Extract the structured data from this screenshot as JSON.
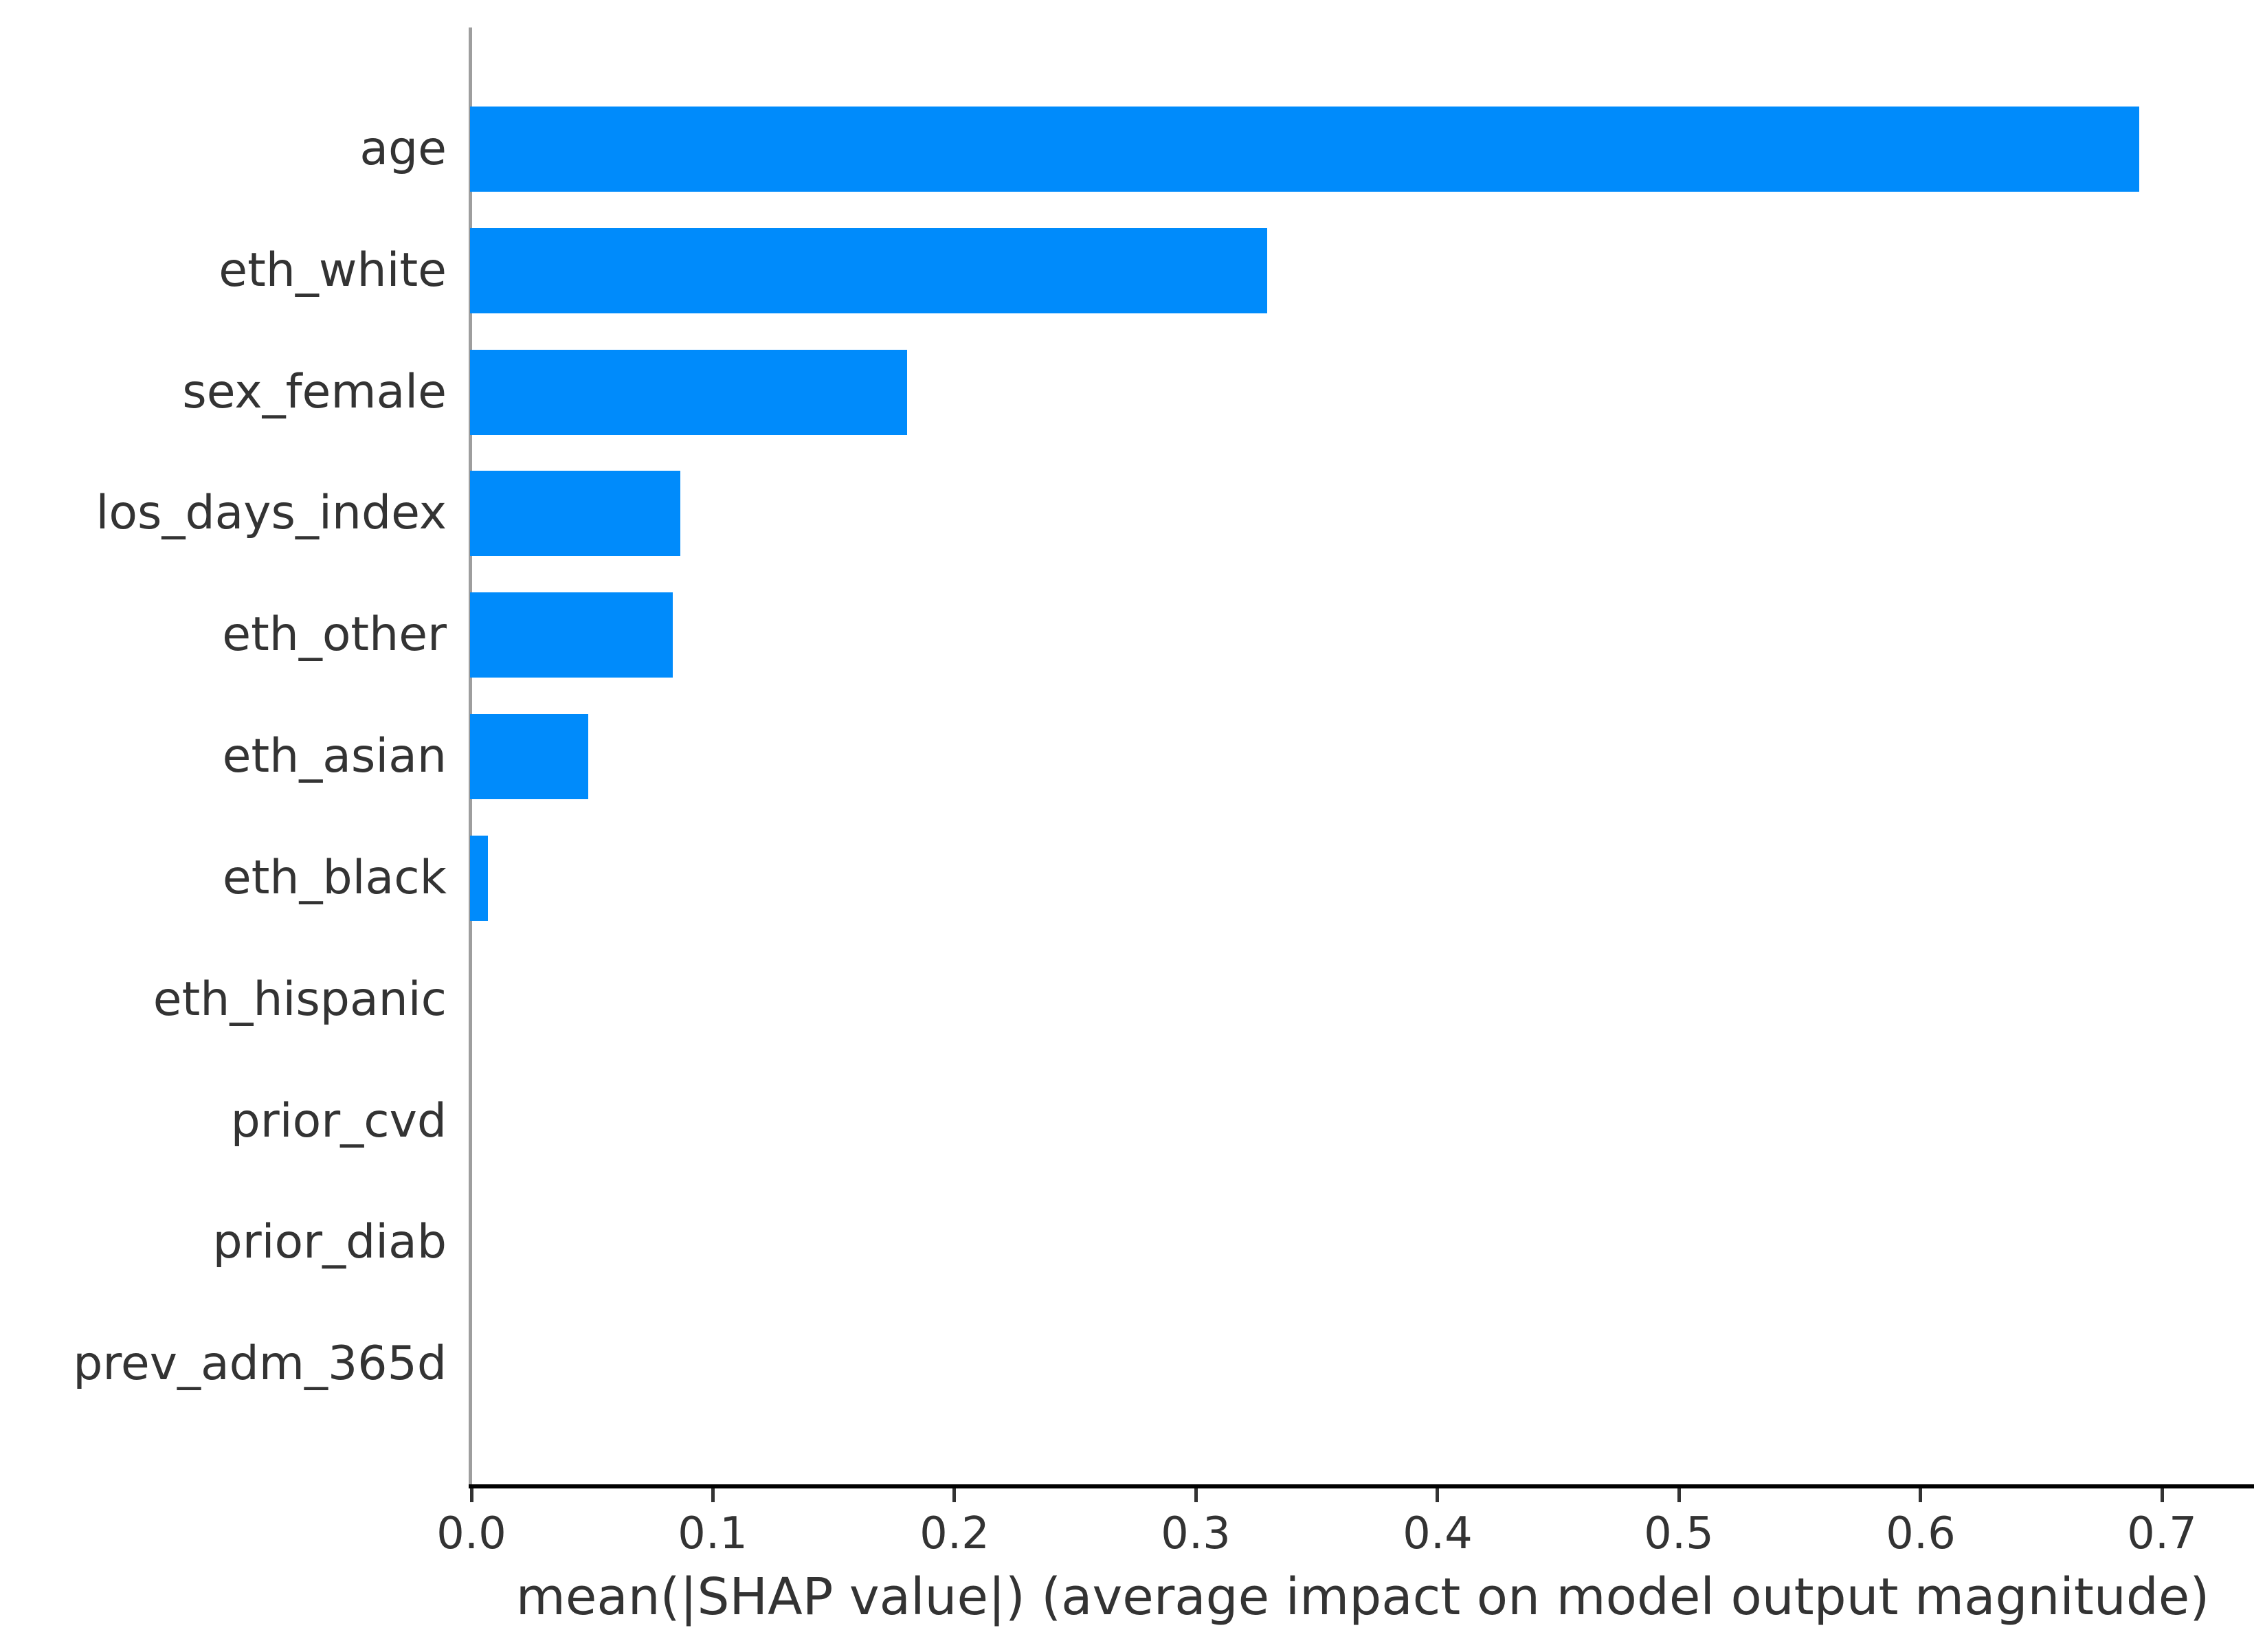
{
  "figure": {
    "background_color": "#ffffff",
    "text_color": "#333333"
  },
  "chart_data": {
    "type": "bar",
    "orientation": "horizontal",
    "title": "",
    "xlabel": "mean(|SHAP value|) (average impact on model output magnitude)",
    "ylabel": "",
    "categories": [
      "age",
      "eth_white",
      "sex_female",
      "los_days_index",
      "eth_other",
      "eth_asian",
      "eth_black",
      "eth_hispanic",
      "prior_cvd",
      "prior_diab",
      "prev_adm_365d"
    ],
    "values": [
      0.691,
      0.33,
      0.181,
      0.087,
      0.084,
      0.049,
      0.0074,
      0.0,
      0.0,
      0.0,
      0.0
    ],
    "xticks": [
      0.0,
      0.1,
      0.2,
      0.3,
      0.4,
      0.5,
      0.6,
      0.7
    ],
    "xtick_labels": [
      "0.0",
      "0.1",
      "0.2",
      "0.3",
      "0.4",
      "0.5",
      "0.6",
      "0.7"
    ],
    "xlim": [
      0,
      0.738
    ],
    "grid": false,
    "legend": false,
    "bar_color": "#008bfb",
    "left_spine_color": "#9e9e9e",
    "bottom_spine_color": "#000000",
    "tick_color": "#333333"
  }
}
